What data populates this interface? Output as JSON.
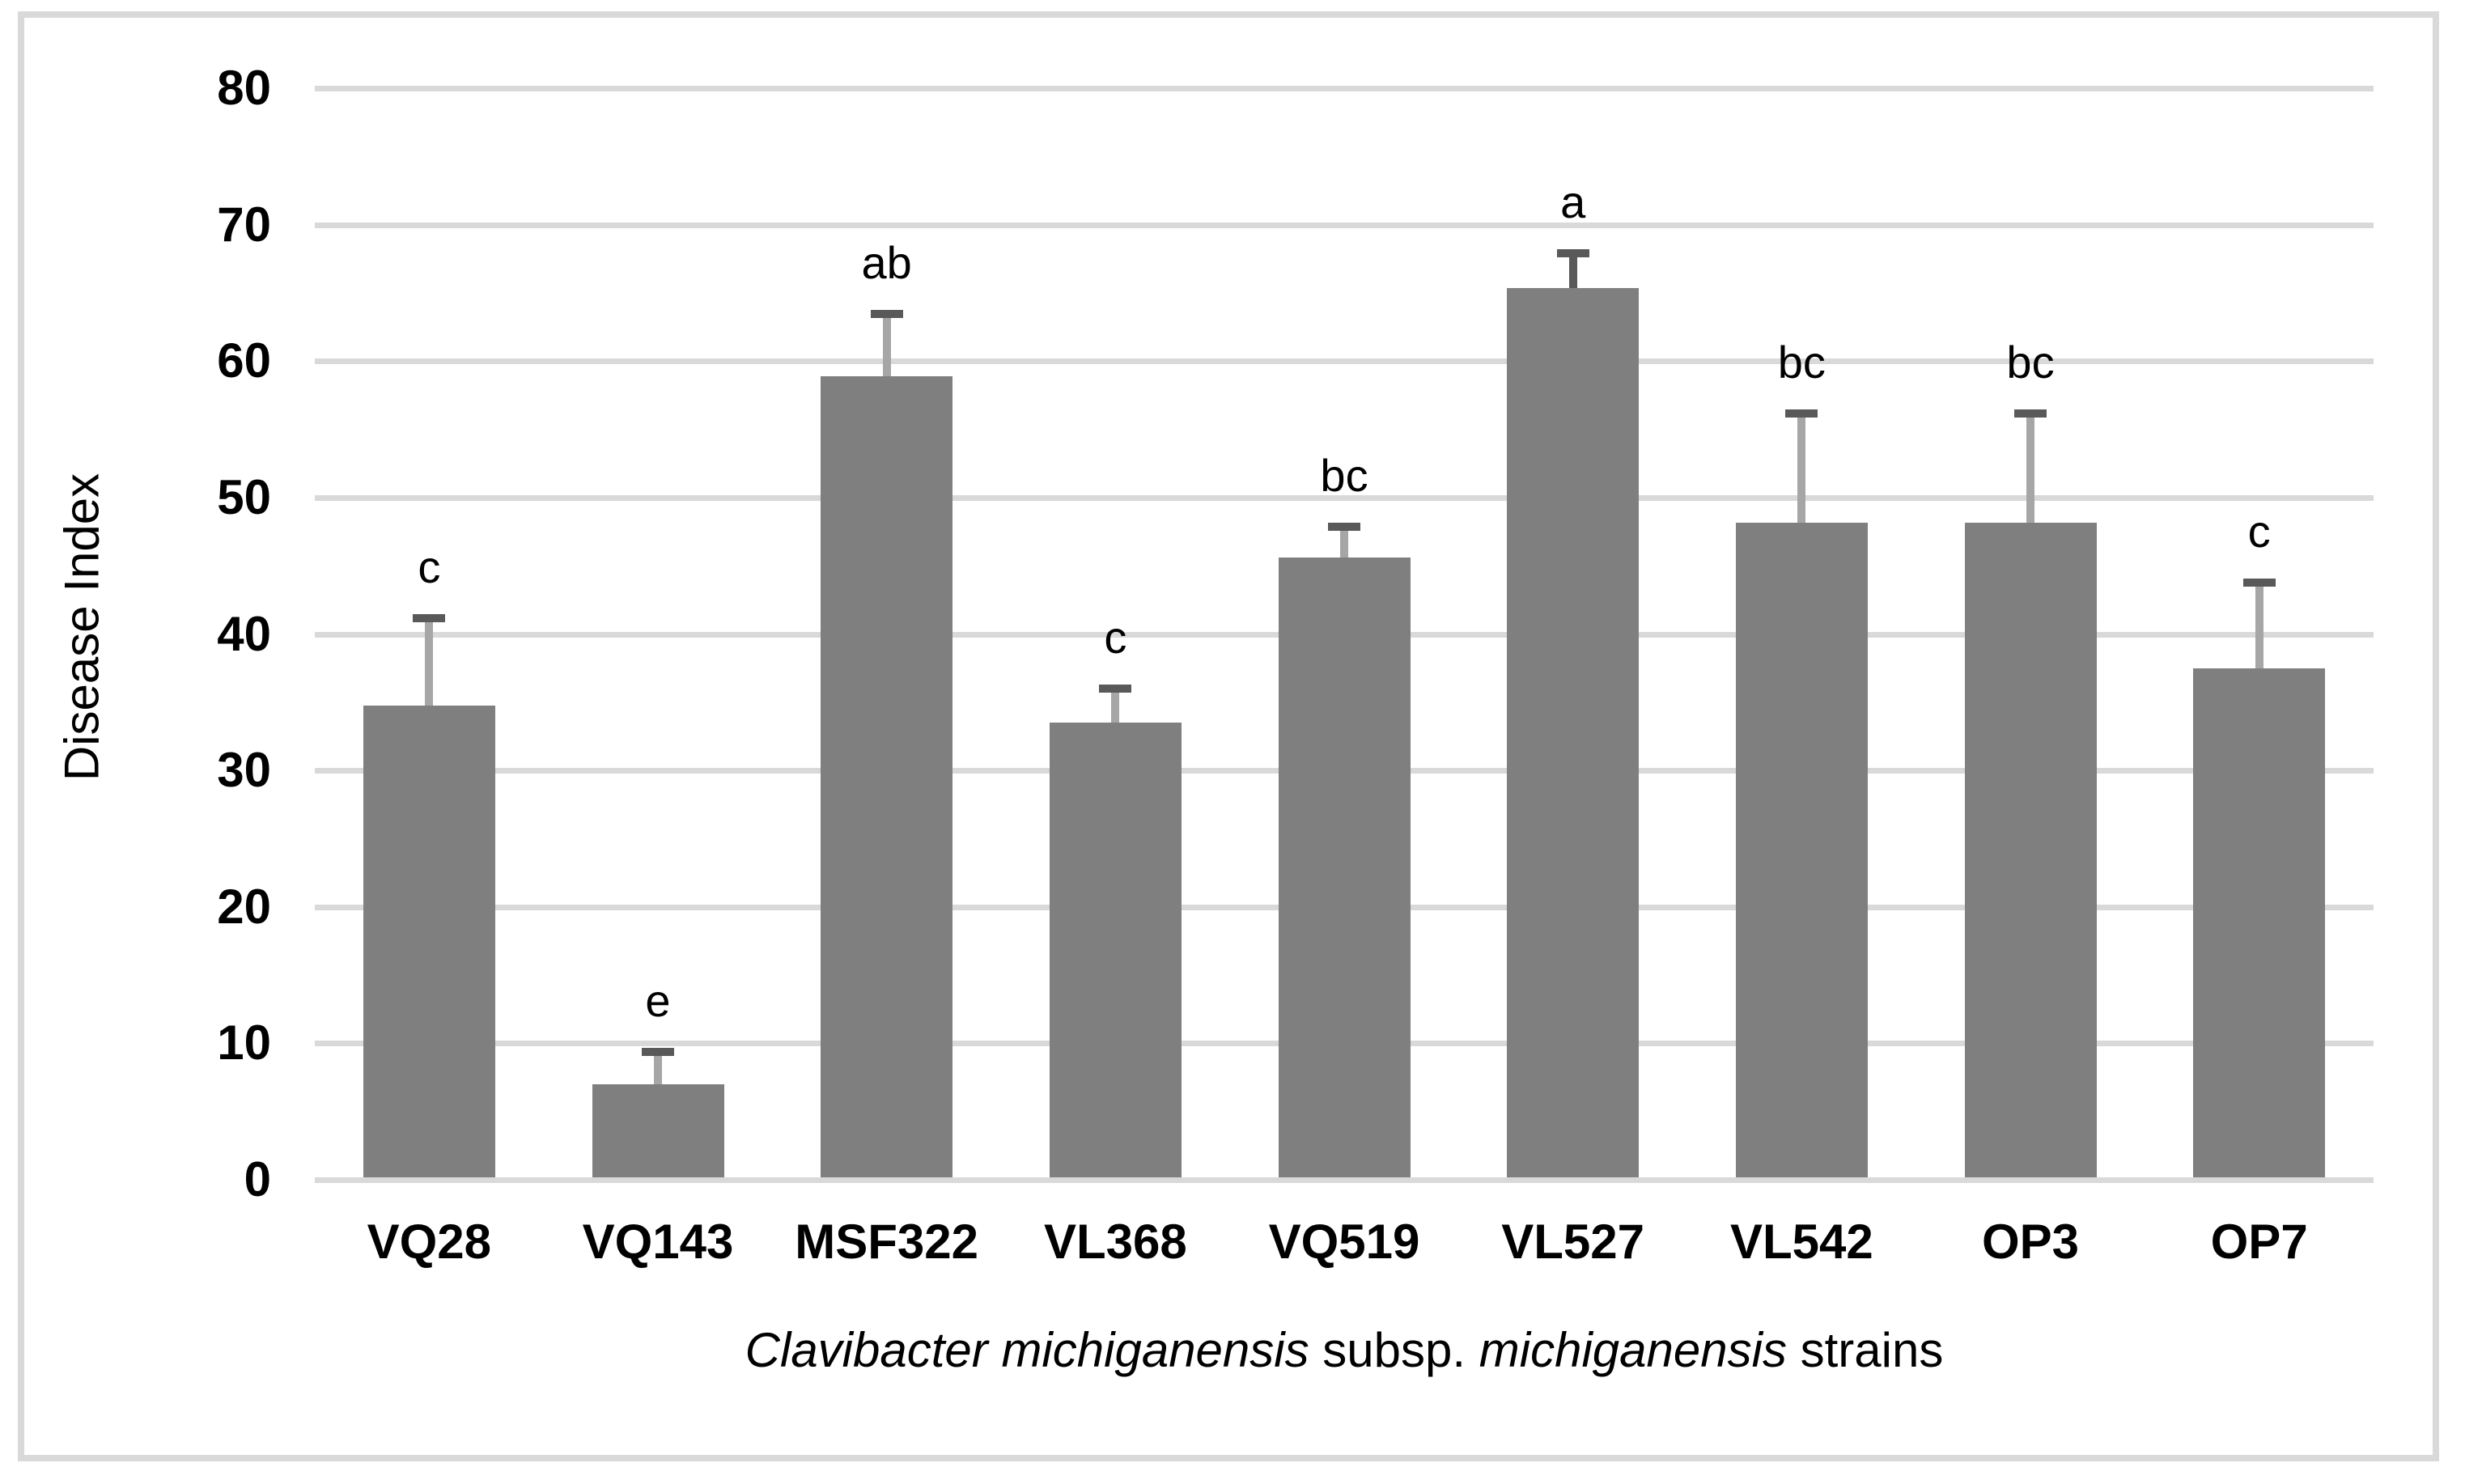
{
  "figure": {
    "background_color": "#ffffff",
    "border_color": "#d9d9d9"
  },
  "chart_data": {
    "type": "bar",
    "title": "",
    "ylabel": "Disease Index",
    "xlabel_parts": [
      {
        "text": "Clavibacter michiganensis",
        "italic": true
      },
      {
        "text": " subsp. ",
        "italic": false
      },
      {
        "text": "michiganensis",
        "italic": true
      },
      {
        "text": " strains",
        "italic": false
      }
    ],
    "ylim": [
      0,
      80
    ],
    "yticks": [
      0,
      10,
      20,
      30,
      40,
      50,
      60,
      70,
      80
    ],
    "grid": true,
    "legend_position": "none",
    "categories": [
      "VQ28",
      "VQ143",
      "MSF322",
      "VL368",
      "VQ519",
      "VL527",
      "VL542",
      "OP3",
      "OP7"
    ],
    "values": [
      34.6,
      6.8,
      58.7,
      33.3,
      45.4,
      65.2,
      48.0,
      48.0,
      37.3
    ],
    "error_bar_tops": [
      41.0,
      9.2,
      63.3,
      35.8,
      47.7,
      67.7,
      56.0,
      56.0,
      43.6
    ],
    "sig_letters": [
      "c",
      "e",
      "ab",
      "c",
      "bc",
      "a",
      "bc",
      "bc",
      "c"
    ],
    "bar_color": "#7f7f7f",
    "error_stem_colors": [
      "#a6a6a6",
      "#a6a6a6",
      "#a6a6a6",
      "#a6a6a6",
      "#a6a6a6",
      "#595959",
      "#a6a6a6",
      "#a6a6a6",
      "#a6a6a6"
    ],
    "error_cap_color": "#595959",
    "gridline_color": "#d9d9d9"
  }
}
